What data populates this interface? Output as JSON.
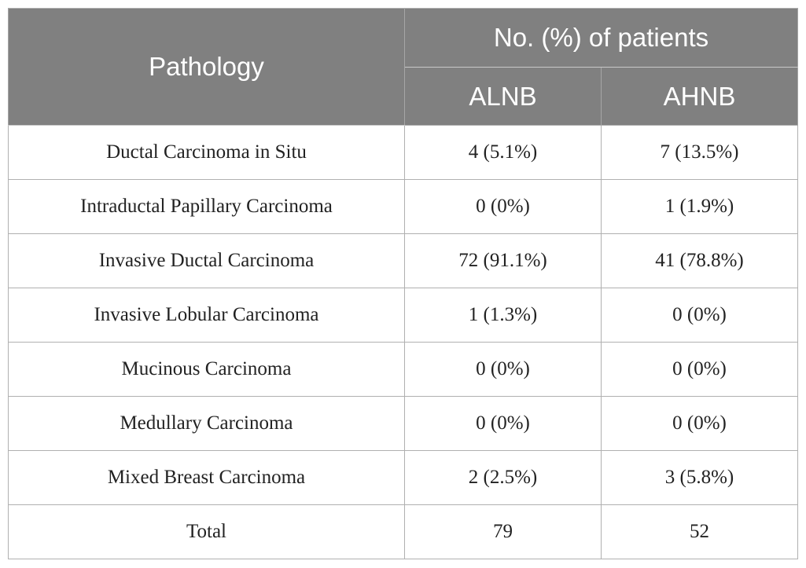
{
  "header": {
    "pathology": "Pathology",
    "group_title": "No. (%) of patients",
    "col_alnb": "ALNB",
    "col_ahnb": "AHNB"
  },
  "rows": [
    {
      "pathology": "Ductal Carcinoma in Situ",
      "alnb": "4 (5.1%)",
      "ahnb": "7 (13.5%)"
    },
    {
      "pathology": "Intraductal Papillary Carcinoma",
      "alnb": "0 (0%)",
      "ahnb": "1 (1.9%)"
    },
    {
      "pathology": "Invasive Ductal Carcinoma",
      "alnb": "72 (91.1%)",
      "ahnb": "41 (78.8%)"
    },
    {
      "pathology": "Invasive Lobular Carcinoma",
      "alnb": "1 (1.3%)",
      "ahnb": "0 (0%)"
    },
    {
      "pathology": "Mucinous Carcinoma",
      "alnb": "0 (0%)",
      "ahnb": "0 (0%)"
    },
    {
      "pathology": "Medullary Carcinoma",
      "alnb": "0 (0%)",
      "ahnb": "0 (0%)"
    },
    {
      "pathology": "Mixed Breast Carcinoma",
      "alnb": "2 (2.5%)",
      "ahnb": "3 (5.8%)"
    },
    {
      "pathology": "Total",
      "alnb": "79",
      "ahnb": "52"
    }
  ],
  "colors": {
    "header_bg": "#808080",
    "header_text": "#ffffff",
    "border": "#b0b0b0"
  }
}
